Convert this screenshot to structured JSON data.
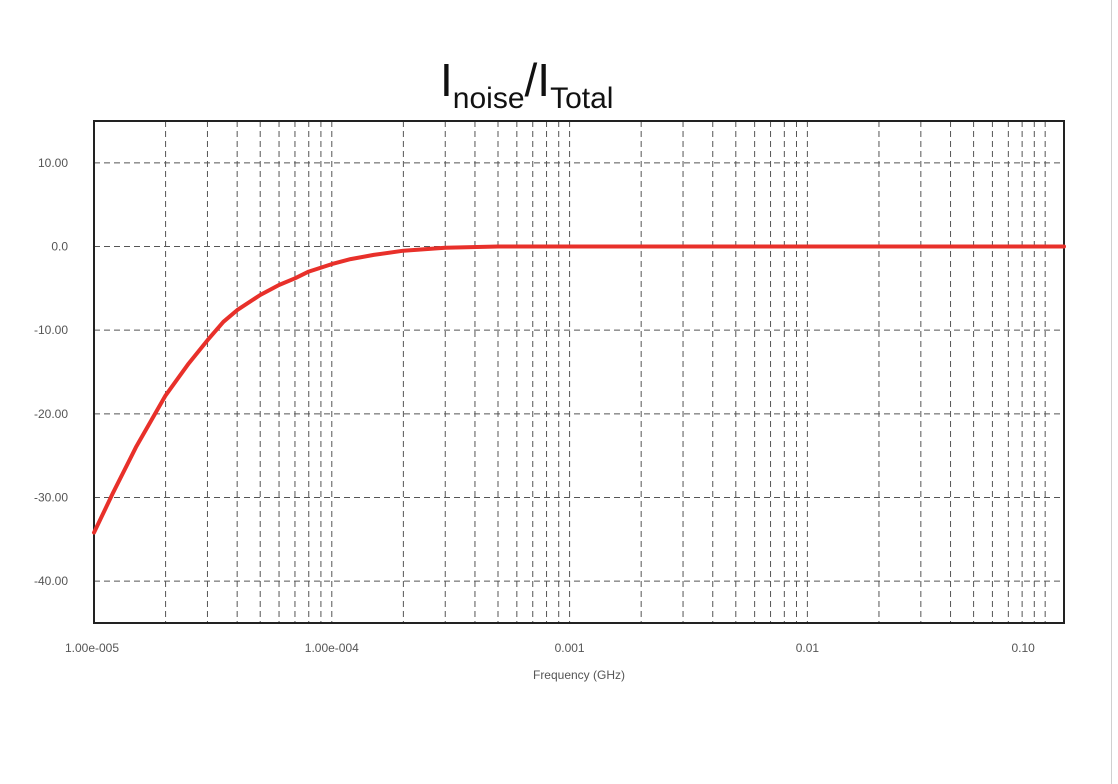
{
  "chart_data": {
    "type": "line",
    "title": {
      "main1": "I",
      "sub1": "noise",
      "sep": "/I",
      "sub2": "Total"
    },
    "xlabel": "Frequency (GHz)",
    "ylabel": "",
    "x_scale": "log",
    "xlim": [
      1e-05,
      0.12
    ],
    "ylim": [
      -45,
      15
    ],
    "grid": true,
    "x_ticks": [
      {
        "value": 1e-05,
        "label": "1.00e-005"
      },
      {
        "value": 0.0001,
        "label": "1.00e-004"
      },
      {
        "value": 0.001,
        "label": "0.001"
      },
      {
        "value": 0.01,
        "label": "0.01"
      },
      {
        "value": 0.1,
        "label": "0.10"
      }
    ],
    "y_ticks": [
      {
        "value": 10,
        "label": "10.00"
      },
      {
        "value": 0,
        "label": "0.0"
      },
      {
        "value": -10,
        "label": "-10.00"
      },
      {
        "value": -20,
        "label": "-20.00"
      },
      {
        "value": -30,
        "label": "-30.00"
      },
      {
        "value": -40,
        "label": "-40.00"
      }
    ],
    "series": [
      {
        "color": "#e8302a",
        "points": [
          [
            1e-05,
            -34.2
          ],
          [
            1.2e-05,
            -29.5
          ],
          [
            1.5e-05,
            -24.0
          ],
          [
            2e-05,
            -17.8
          ],
          [
            2.5e-05,
            -14.0
          ],
          [
            3e-05,
            -11.2
          ],
          [
            3.5e-05,
            -9.0
          ],
          [
            4e-05,
            -7.6
          ],
          [
            5e-05,
            -5.8
          ],
          [
            6e-05,
            -4.6
          ],
          [
            7e-05,
            -3.8
          ],
          [
            8e-05,
            -3.0
          ],
          [
            0.0001,
            -2.1
          ],
          [
            0.00012,
            -1.5
          ],
          [
            0.00015,
            -1.0
          ],
          [
            0.0002,
            -0.5
          ],
          [
            0.0003,
            -0.15
          ],
          [
            0.0005,
            0.0
          ],
          [
            0.001,
            0.0
          ],
          [
            0.01,
            0.0
          ],
          [
            0.12,
            0.0
          ]
        ]
      }
    ]
  }
}
